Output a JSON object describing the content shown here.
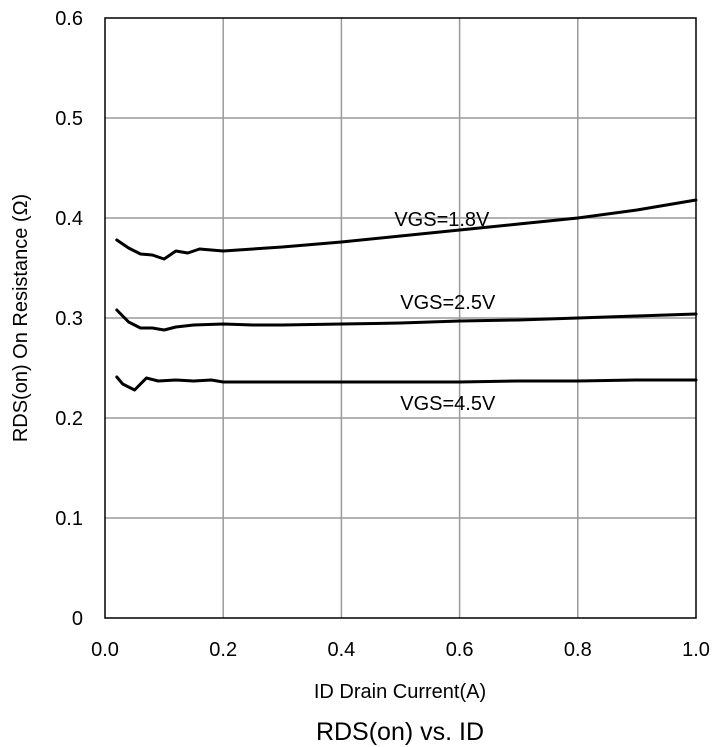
{
  "chart_data": {
    "type": "line",
    "title": "RDS(on) vs. ID",
    "xlabel": "ID Drain Current(A)",
    "ylabel": "RDS(on) On Resistance (Ω)",
    "xlim": [
      0,
      1
    ],
    "ylim": [
      0,
      0.6
    ],
    "xticks": [
      "0.0",
      "0.2",
      "0.4",
      "0.6",
      "0.8",
      "1.0"
    ],
    "yticks": [
      "0",
      "0.1",
      "0.2",
      "0.3",
      "0.4",
      "0.5",
      "0.6"
    ],
    "grid": true,
    "series": [
      {
        "name": "VGS=1.8V",
        "x": [
          0.02,
          0.04,
          0.06,
          0.08,
          0.1,
          0.12,
          0.14,
          0.16,
          0.18,
          0.2,
          0.3,
          0.4,
          0.5,
          0.6,
          0.7,
          0.8,
          0.9,
          1.0
        ],
        "y": [
          0.378,
          0.37,
          0.364,
          0.363,
          0.359,
          0.367,
          0.365,
          0.369,
          0.368,
          0.367,
          0.371,
          0.376,
          0.382,
          0.388,
          0.394,
          0.4,
          0.408,
          0.418
        ]
      },
      {
        "name": "VGS=2.5V",
        "x": [
          0.02,
          0.04,
          0.06,
          0.08,
          0.1,
          0.12,
          0.15,
          0.2,
          0.25,
          0.3,
          0.4,
          0.5,
          0.6,
          0.7,
          0.8,
          0.9,
          1.0
        ],
        "y": [
          0.308,
          0.296,
          0.29,
          0.29,
          0.288,
          0.291,
          0.293,
          0.294,
          0.293,
          0.293,
          0.294,
          0.295,
          0.297,
          0.298,
          0.3,
          0.302,
          0.304
        ]
      },
      {
        "name": "VGS=4.5V",
        "x": [
          0.02,
          0.03,
          0.05,
          0.07,
          0.09,
          0.12,
          0.15,
          0.18,
          0.2,
          0.3,
          0.4,
          0.5,
          0.6,
          0.7,
          0.8,
          0.9,
          1.0
        ],
        "y": [
          0.241,
          0.234,
          0.228,
          0.24,
          0.237,
          0.238,
          0.237,
          0.238,
          0.236,
          0.236,
          0.236,
          0.236,
          0.236,
          0.237,
          0.237,
          0.238,
          0.238
        ]
      }
    ],
    "annotations": [
      {
        "text": "VGS=1.8V",
        "x": 0.57,
        "y": 0.392
      },
      {
        "text": "VGS=2.5V",
        "x": 0.58,
        "y": 0.309
      },
      {
        "text": "VGS=4.5V",
        "x": 0.58,
        "y": 0.208
      }
    ]
  }
}
